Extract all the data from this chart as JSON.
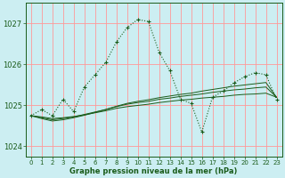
{
  "title": "Graphe pression niveau de la mer (hPa)",
  "background_color": "#cceef2",
  "grid_color": "#ff9999",
  "line_color": "#1a5c1a",
  "xlim": [
    -0.5,
    23.5
  ],
  "ylim": [
    1023.75,
    1027.5
  ],
  "yticks": [
    1024,
    1025,
    1026,
    1027
  ],
  "xticks": [
    0,
    1,
    2,
    3,
    4,
    5,
    6,
    7,
    8,
    9,
    10,
    11,
    12,
    13,
    14,
    15,
    16,
    17,
    18,
    19,
    20,
    21,
    22,
    23
  ],
  "series0": [
    1024.75,
    1024.9,
    1024.75,
    1025.15,
    1024.85,
    1025.45,
    1025.75,
    1026.05,
    1026.55,
    1026.9,
    1027.1,
    1027.05,
    1026.3,
    1025.85,
    1025.15,
    1025.05,
    1024.35,
    1025.2,
    1025.35,
    1025.55,
    1025.7,
    1025.8,
    1025.75,
    1025.15
  ],
  "series1": [
    1024.75,
    1024.72,
    1024.68,
    1024.7,
    1024.73,
    1024.77,
    1024.82,
    1024.87,
    1024.93,
    1024.97,
    1025.0,
    1025.03,
    1025.07,
    1025.1,
    1025.13,
    1025.15,
    1025.18,
    1025.2,
    1025.22,
    1025.25,
    1025.27,
    1025.28,
    1025.3,
    1025.2
  ],
  "series2": [
    1024.75,
    1024.7,
    1024.65,
    1024.68,
    1024.72,
    1024.78,
    1024.84,
    1024.9,
    1024.97,
    1025.03,
    1025.07,
    1025.1,
    1025.15,
    1025.18,
    1025.22,
    1025.25,
    1025.28,
    1025.32,
    1025.35,
    1025.38,
    1025.4,
    1025.43,
    1025.45,
    1025.2
  ],
  "series3": [
    1024.75,
    1024.68,
    1024.62,
    1024.65,
    1024.7,
    1024.76,
    1024.83,
    1024.9,
    1024.98,
    1025.05,
    1025.1,
    1025.14,
    1025.19,
    1025.23,
    1025.27,
    1025.3,
    1025.35,
    1025.39,
    1025.43,
    1025.47,
    1025.5,
    1025.53,
    1025.56,
    1025.2
  ]
}
